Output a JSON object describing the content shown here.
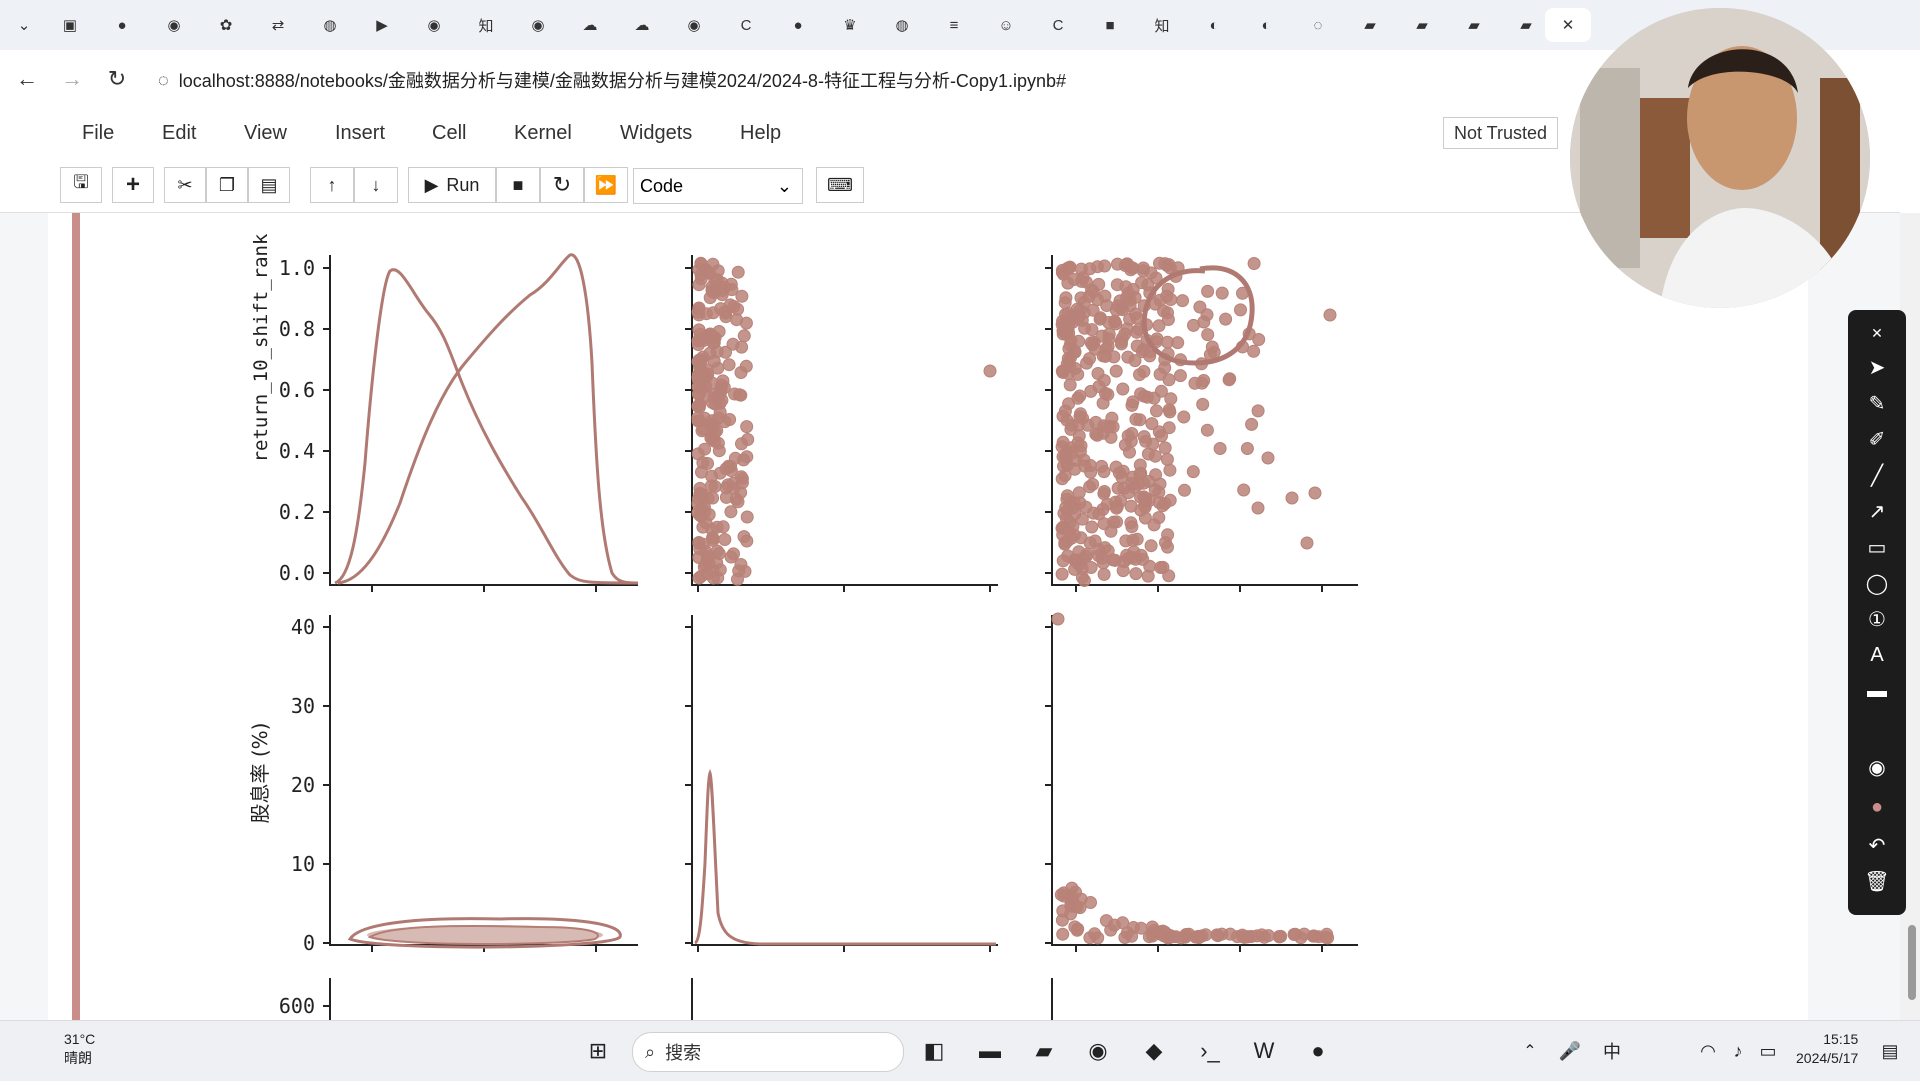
{
  "browser": {
    "url": "localhost:8888/notebooks/金融数据分析与建模/金融数据分析与建模2024/2024-8-特征工程与分析-Copy1.ipynb#"
  },
  "menu": {
    "items": [
      "File",
      "Edit",
      "View",
      "Insert",
      "Cell",
      "Kernel",
      "Widgets",
      "Help"
    ],
    "trusted": "Not Trusted"
  },
  "toolbar": {
    "run_label": "Run",
    "cell_type": "Code"
  },
  "plot": {
    "row1_ylabel": "return_10_shift_rank",
    "row2_ylabel": "股息率 (%)",
    "row1_ticks": [
      "1.0",
      "0.8",
      "0.6",
      "0.4",
      "0.2",
      "0.0"
    ],
    "row2_ticks": [
      "40",
      "30",
      "20",
      "10",
      "0"
    ],
    "row3_ticks": [
      "600"
    ]
  },
  "chart_data": {
    "type": "scatter",
    "title": "",
    "grid": false,
    "panels": [
      {
        "row": 1,
        "col": 1,
        "kind": "kde",
        "ylabel": "return_10_shift_rank",
        "ylim": [
          0,
          1
        ]
      },
      {
        "row": 1,
        "col": 2,
        "kind": "scatter",
        "ylim": [
          0,
          1
        ]
      },
      {
        "row": 1,
        "col": 3,
        "kind": "scatter",
        "ylim": [
          0,
          1
        ]
      },
      {
        "row": 2,
        "col": 1,
        "kind": "kde-2d",
        "ylabel": "股息率 (%)",
        "ylim": [
          0,
          40
        ]
      },
      {
        "row": 2,
        "col": 2,
        "kind": "kde",
        "ylim": [
          0,
          40
        ]
      },
      {
        "row": 2,
        "col": 3,
        "kind": "scatter",
        "ylim": [
          0,
          40
        ]
      },
      {
        "row": 3,
        "col": 1,
        "kind": "partial",
        "ytick_visible": "600"
      }
    ]
  },
  "system": {
    "weather_temp": "31°C",
    "weather_desc": "晴朗",
    "search_placeholder": "搜索",
    "time": "15:15",
    "date": "2024/5/17"
  },
  "colors": {
    "accent": "#b88278",
    "cell_bar": "#c98d8a"
  }
}
